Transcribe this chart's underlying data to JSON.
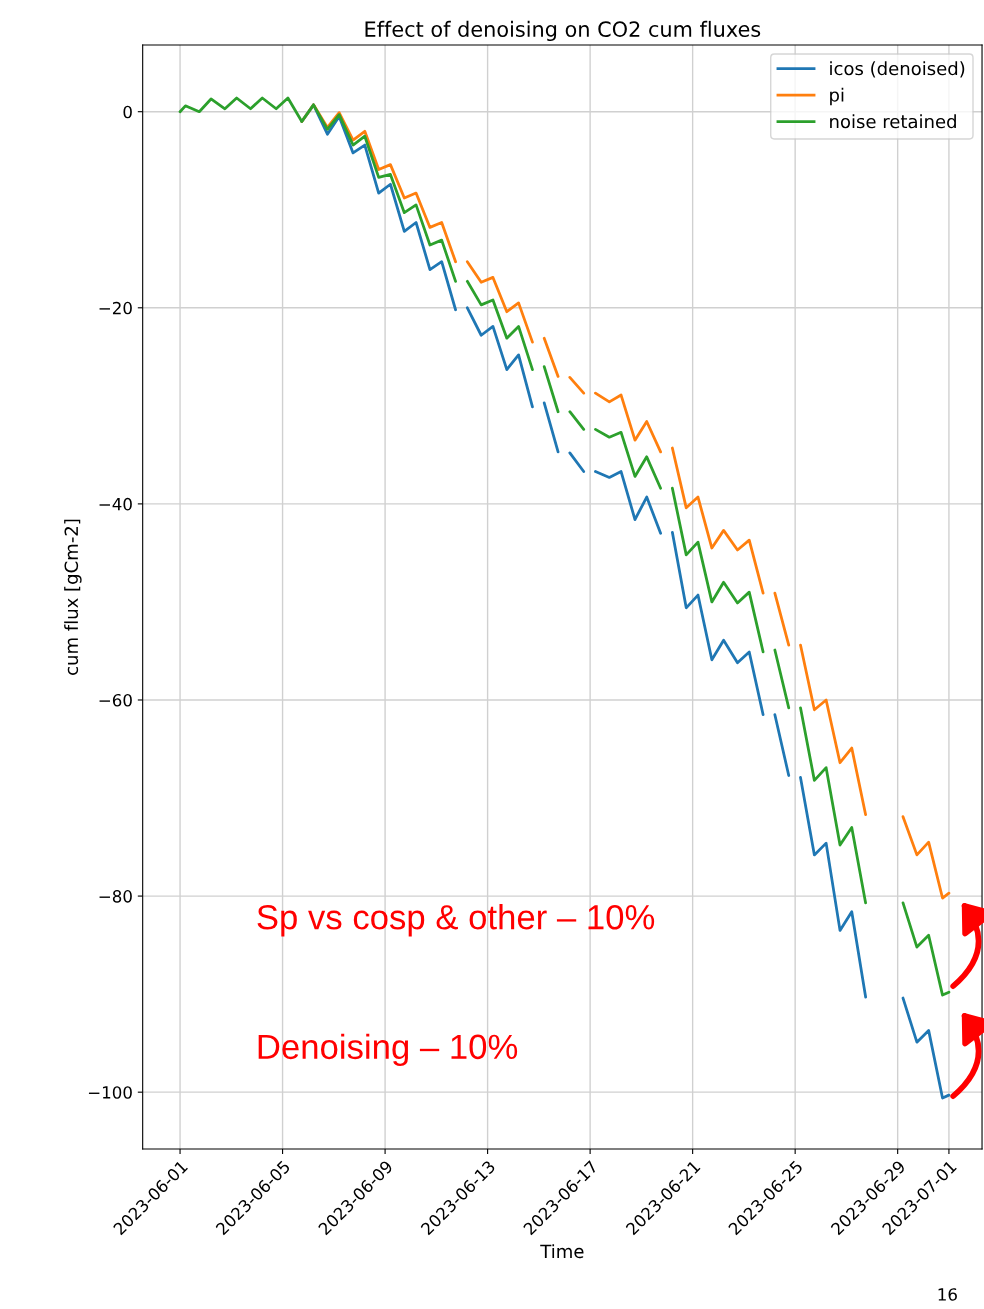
{
  "chart_data": {
    "type": "line",
    "title": "Effect of denoising on CO2 cum fluxes",
    "xlabel": "Time",
    "ylabel": "cum flux [gCm-2]",
    "x": [
      "2023-06-01T00:00",
      "2023-06-01T05:00",
      "2023-06-01T18:00",
      "2023-06-02T05:00",
      "2023-06-02T18:00",
      "2023-06-03T05:00",
      "2023-06-03T18:00",
      "2023-06-04T05:00",
      "2023-06-04T18:00",
      "2023-06-05T05:00",
      "2023-06-05T18:00",
      "2023-06-06T05:00",
      "2023-06-06T18:00",
      "2023-06-07T05:00",
      "2023-06-07T18:00",
      "2023-06-08T05:00",
      "2023-06-08T18:00",
      "2023-06-09T05:00",
      "2023-06-09T18:00",
      "2023-06-10T05:00",
      "2023-06-10T18:00",
      "2023-06-11T05:00",
      "2023-06-11T18:00",
      "2023-06-12T00:00",
      "2023-06-12T05:00",
      "2023-06-12T18:00",
      "2023-06-13T05:00",
      "2023-06-13T18:00",
      "2023-06-14T05:00",
      "2023-06-14T18:00",
      "2023-06-15T00:00",
      "2023-06-15T05:00",
      "2023-06-15T18:00",
      "2023-06-16T00:00",
      "2023-06-16T05:00",
      "2023-06-16T18:00",
      "2023-06-17T00:00",
      "2023-06-17T05:00",
      "2023-06-17T18:00",
      "2023-06-18T05:00",
      "2023-06-18T18:00",
      "2023-06-19T05:00",
      "2023-06-19T18:00",
      "2023-06-20T00:00",
      "2023-06-20T05:00",
      "2023-06-20T18:00",
      "2023-06-21T05:00",
      "2023-06-21T18:00",
      "2023-06-22T05:00",
      "2023-06-22T18:00",
      "2023-06-23T05:00",
      "2023-06-23T18:00",
      "2023-06-24T00:00",
      "2023-06-24T05:00",
      "2023-06-24T18:00",
      "2023-06-25T00:00",
      "2023-06-25T05:00",
      "2023-06-25T18:00",
      "2023-06-26T05:00",
      "2023-06-26T18:00",
      "2023-06-27T05:00",
      "2023-06-27T18:00",
      "2023-06-28T05:00",
      "2023-06-28T18:00",
      "2023-06-29T05:00",
      "2023-06-29T18:00",
      "2023-06-30T05:00",
      "2023-06-30T18:00",
      "2023-07-01T00:00"
    ],
    "series": [
      {
        "name": "icos (denoised)",
        "color": "#1f77b4",
        "values": [
          null,
          null,
          null,
          null,
          null,
          null,
          null,
          null,
          null,
          null,
          -1.0,
          0.7,
          -2.3,
          -0.5,
          -4.2,
          -3.4,
          -8.3,
          -7.4,
          -12.2,
          -11.3,
          -16.1,
          -15.3,
          -20.2,
          null,
          -20.0,
          -22.8,
          -21.9,
          -26.3,
          -24.8,
          -30.1,
          null,
          -29.7,
          -34.7,
          null,
          -34.8,
          -36.7,
          null,
          -36.7,
          -37.3,
          -36.7,
          -41.6,
          -39.3,
          -43.0,
          null,
          -42.9,
          -50.6,
          -49.3,
          -55.9,
          -53.9,
          -56.2,
          -55.1,
          -61.5,
          null,
          -61.5,
          -67.7,
          null,
          -67.9,
          -75.8,
          -74.6,
          -83.5,
          -81.6,
          -90.3,
          null,
          null,
          -90.4,
          -94.9,
          -93.7,
          -100.6,
          -100.3
        ]
      },
      {
        "name": "pi",
        "color": "#ff7f0e",
        "values": [
          null,
          null,
          null,
          null,
          null,
          null,
          null,
          null,
          null,
          null,
          -1.0,
          0.7,
          -1.6,
          -0.1,
          -2.9,
          -2.0,
          -5.9,
          -5.4,
          -8.8,
          -8.3,
          -11.8,
          -11.3,
          -15.3,
          null,
          -15.3,
          -17.4,
          -16.9,
          -20.4,
          -19.5,
          -23.5,
          null,
          -23.1,
          -27.0,
          null,
          -27.1,
          -28.7,
          null,
          -28.7,
          -29.6,
          -28.9,
          -33.5,
          -31.6,
          -34.7,
          null,
          -34.3,
          -40.4,
          -39.3,
          -44.5,
          -42.7,
          -44.7,
          -43.7,
          -49.1,
          null,
          -49.1,
          -54.4,
          null,
          -54.4,
          -61.0,
          -60.0,
          -66.4,
          -64.9,
          -71.7,
          null,
          null,
          -71.9,
          -75.8,
          -74.5,
          -80.2,
          -79.7
        ]
      },
      {
        "name": "noise retained",
        "color": "#2ca02c",
        "values": [
          0,
          0.6,
          0,
          1.3,
          0.3,
          1.4,
          0.3,
          1.4,
          0.3,
          1.4,
          -1.0,
          0.7,
          -1.8,
          -0.3,
          -3.4,
          -2.5,
          -6.7,
          -6.4,
          -10.3,
          -9.5,
          -13.6,
          -13.1,
          -17.3,
          null,
          -17.3,
          -19.7,
          -19.2,
          -23.1,
          -21.9,
          -26.3,
          null,
          -26.0,
          -30.6,
          null,
          -30.6,
          -32.4,
          null,
          -32.4,
          -33.2,
          -32.7,
          -37.2,
          -35.2,
          -38.4,
          null,
          -38.4,
          -45.2,
          -43.9,
          -50.0,
          -48.0,
          -50.1,
          -49.0,
          -55.1,
          null,
          -54.9,
          -60.8,
          null,
          -60.8,
          -68.2,
          -66.9,
          -74.8,
          -73.0,
          -80.7,
          null,
          null,
          -80.7,
          -85.2,
          -84.0,
          -90.1,
          -89.8
        ]
      }
    ],
    "xlim": [
      "2023-05-30T13:00",
      "2023-07-02T07:00"
    ],
    "xticks": [
      "2023-06-01",
      "2023-06-05",
      "2023-06-09",
      "2023-06-13",
      "2023-06-17",
      "2023-06-21",
      "2023-06-25",
      "2023-06-29",
      "2023-07-01"
    ],
    "ylim": [
      -105.8,
      6.8
    ],
    "yticks": [
      -100,
      -80,
      -60,
      -40,
      -20,
      0
    ],
    "grid": true,
    "legend": "top right",
    "annotations": [
      "Sp vs cosp & other – 10%",
      "Denoising – 10%",
      "16"
    ]
  }
}
